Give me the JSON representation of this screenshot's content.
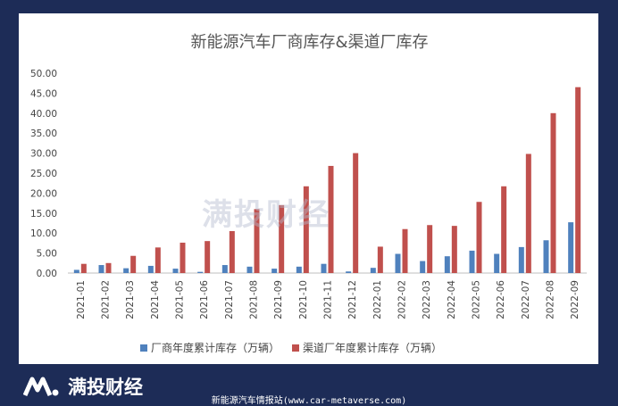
{
  "chart_data": {
    "type": "bar",
    "title": "新能源汽车厂商库存&渠道厂库存",
    "categories": [
      "2021-01",
      "2021-02",
      "2021-03",
      "2021-04",
      "2021-05",
      "2021-06",
      "2021-07",
      "2021-08",
      "2021-09",
      "2021-10",
      "2021-11",
      "2021-12",
      "2022-01",
      "2022-02",
      "2022-03",
      "2022-04",
      "2022-05",
      "2022-06",
      "2022-07",
      "2022-08",
      "2022-09"
    ],
    "series": [
      {
        "name": "厂商年度累计库存（万辆）",
        "color": "#4f81bd",
        "values": [
          0.8,
          2.0,
          1.2,
          1.8,
          1.1,
          0.3,
          2.0,
          1.6,
          1.1,
          1.6,
          2.3,
          0.4,
          1.3,
          4.8,
          3.0,
          4.2,
          5.6,
          4.8,
          6.5,
          8.2,
          12.7
        ]
      },
      {
        "name": "渠道厂年度累计库存（万辆）",
        "color": "#c0504d",
        "values": [
          2.3,
          2.5,
          4.3,
          6.4,
          7.6,
          8.0,
          10.5,
          16.0,
          17.0,
          21.7,
          26.8,
          30.0,
          6.6,
          11.0,
          12.0,
          11.8,
          17.8,
          21.7,
          29.8,
          40.0,
          46.5
        ]
      }
    ],
    "ylim": [
      0,
      50
    ],
    "yticks": [
      "0.00",
      "5.00",
      "10.00",
      "15.00",
      "20.00",
      "25.00",
      "30.00",
      "35.00",
      "40.00",
      "45.00",
      "50.00"
    ],
    "grid": false,
    "legend": "bottom"
  },
  "watermark_text": "满投财经",
  "footer": {
    "brand": "满投财经",
    "source": "新能源汽车情报站(www.car-metaverse.com)"
  }
}
